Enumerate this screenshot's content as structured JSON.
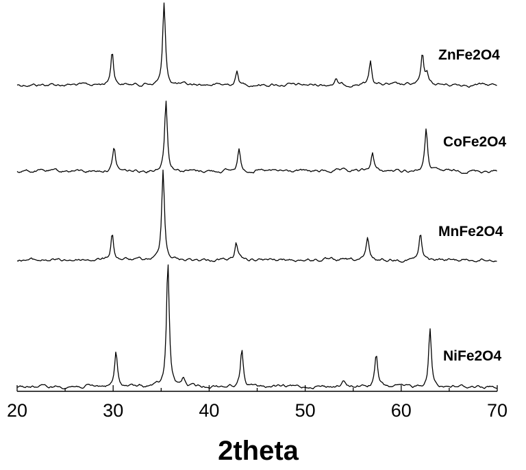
{
  "chart_data": {
    "type": "line",
    "title": "",
    "xlabel": "2theta",
    "ylabel": "",
    "xlim": [
      20,
      70
    ],
    "xticks": [
      20,
      30,
      40,
      50,
      60,
      70
    ],
    "yaxis_visible": false,
    "grid": false,
    "legend": "none",
    "series_label_position": "right, above each trace",
    "color": "#000000",
    "series": [
      {
        "name": "ZnFe2O4",
        "peaks": [
          [
            29.9,
            0.42
          ],
          [
            35.3,
            1.0
          ],
          [
            42.9,
            0.16
          ],
          [
            53.2,
            0.06
          ],
          [
            56.8,
            0.3
          ],
          [
            62.2,
            0.36
          ],
          [
            62.7,
            0.14
          ]
        ]
      },
      {
        "name": "CoFe2O4",
        "peaks": [
          [
            30.1,
            0.33
          ],
          [
            35.5,
            1.0
          ],
          [
            43.1,
            0.31
          ],
          [
            57.0,
            0.27
          ],
          [
            62.6,
            0.58
          ]
        ]
      },
      {
        "name": "MnFe2O4",
        "peaks": [
          [
            29.9,
            0.29
          ],
          [
            35.2,
            1.0
          ],
          [
            42.8,
            0.19
          ],
          [
            56.5,
            0.23
          ],
          [
            62.0,
            0.28
          ]
        ]
      },
      {
        "name": "NiFe2O4",
        "peaks": [
          [
            30.3,
            0.27
          ],
          [
            35.7,
            1.0
          ],
          [
            37.3,
            0.07
          ],
          [
            43.4,
            0.3
          ],
          [
            54.0,
            0.04
          ],
          [
            57.4,
            0.26
          ],
          [
            63.0,
            0.46
          ]
        ]
      }
    ]
  }
}
